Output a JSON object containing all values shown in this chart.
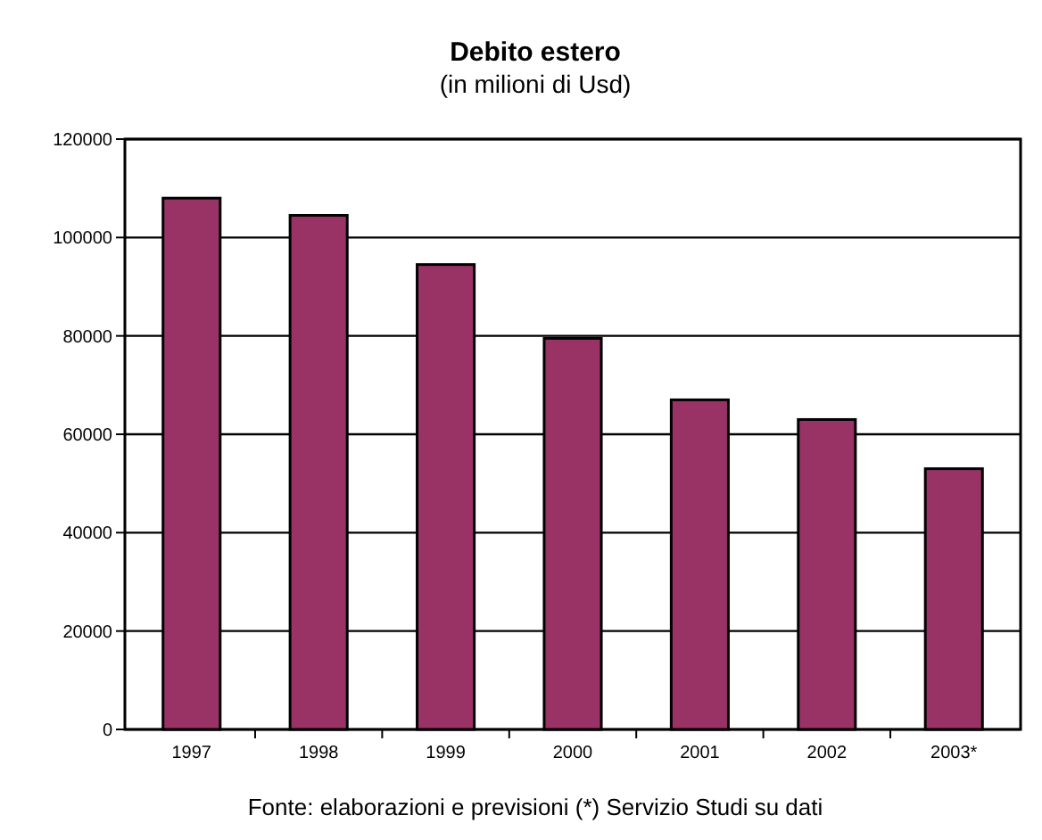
{
  "chart_data": {
    "type": "bar",
    "title": "Debito estero",
    "subtitle": "(in milioni di Usd)",
    "categories": [
      "1997",
      "1998",
      "1999",
      "2000",
      "2001",
      "2002",
      "2003*"
    ],
    "values": [
      108000,
      104500,
      94500,
      79500,
      67000,
      63000,
      53000
    ],
    "color": "#993366",
    "ylim": [
      0,
      120000
    ],
    "yticks": [
      0,
      20000,
      40000,
      60000,
      80000,
      100000,
      120000
    ],
    "grid": "y",
    "annotations": [
      "Fonte: elaborazioni e previsioni (*) Servizio Studi su dati"
    ]
  }
}
